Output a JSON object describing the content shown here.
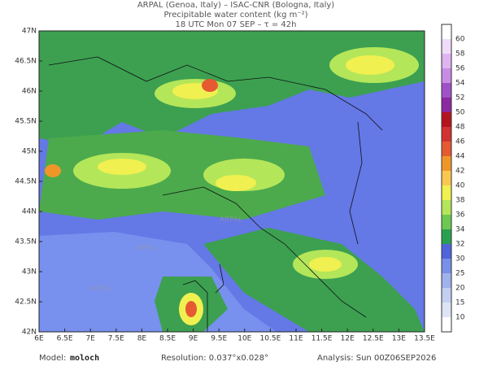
{
  "header": {
    "line1": "ARPAL (Genoa, Italy)  –  ISAC-CNR (Bologna, Italy)",
    "line2": "Precipitable water content (kg m⁻²)",
    "line3": "18 UTC Mon 07 SEP  –  τ = 42h"
  },
  "map": {
    "lon_labels": [
      "6E",
      "6.5E",
      "7E",
      "7.5E",
      "8E",
      "8.5E",
      "9E",
      "9.5E",
      "10E",
      "10.5E",
      "11E",
      "11.5E",
      "12E",
      "12.5E",
      "13E",
      "13.5E"
    ],
    "lat_labels": [
      "47N",
      "46.5N",
      "46N",
      "45.5N",
      "45N",
      "44.5N",
      "44N",
      "43.5N",
      "43N",
      "42.5N",
      "42N"
    ],
    "watermark": "ARPAL"
  },
  "colorbar": {
    "labels": [
      "10",
      "15",
      "20",
      "25",
      "30",
      "32",
      "34",
      "36",
      "38",
      "40",
      "42",
      "44",
      "46",
      "48",
      "50",
      "52",
      "54",
      "56",
      "58",
      "60"
    ]
  },
  "footer": {
    "model_label": "Model:",
    "model": "moloch",
    "resolution": "Resolution: 0.037°x0.028°",
    "analysis": "Analysis: Sun 00Z06SEP2026"
  }
}
